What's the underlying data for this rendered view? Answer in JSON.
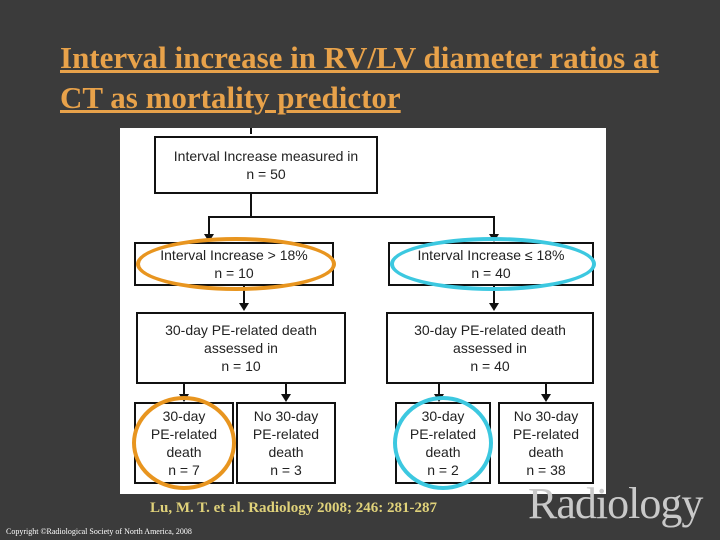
{
  "title": "Interval increase in RV/LV diameter ratios at CT as mortality predictor",
  "flowchart": {
    "root": {
      "line1": "Interval Increase measured in",
      "line2": "n = 50"
    },
    "left_group": {
      "line1": "Interval Increase > 18%",
      "line2": "n = 10"
    },
    "right_group": {
      "line1": "Interval Increase ≤ 18%",
      "line2": "n = 40"
    },
    "left_assess": {
      "line1": "30-day PE-related death",
      "line2": "assessed in",
      "line3": "n = 10"
    },
    "right_assess": {
      "line1": "30-day PE-related death",
      "line2": "assessed in",
      "line3": "n = 40"
    },
    "outcomes": [
      {
        "line1": "30-day",
        "line2": "PE-related",
        "line3": "death",
        "line4": "n = 7"
      },
      {
        "line1": "No 30-day",
        "line2": "PE-related",
        "line3": "death",
        "line4": "n = 3"
      },
      {
        "line1": "30-day",
        "line2": "PE-related",
        "line3": "death",
        "line4": "n = 2"
      },
      {
        "line1": "No 30-day",
        "line2": "PE-related",
        "line3": "death",
        "line4": "n = 38"
      }
    ]
  },
  "highlight_colors": {
    "left": "#e8951f",
    "right": "#3cc8e0"
  },
  "citation": "Lu, M. T. et al. Radiology 2008; 246: 281-287",
  "copyright": "Copyright ©Radiological Society of North America, 2008",
  "logo": "Radiology"
}
